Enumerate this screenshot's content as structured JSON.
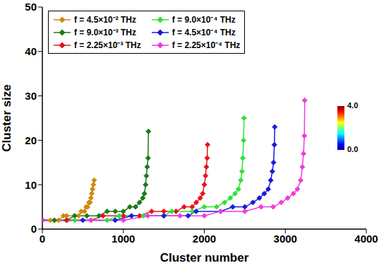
{
  "chart_data": {
    "type": "line",
    "x_label": "Cluster number",
    "y_label": "Cluster size",
    "xlim": [
      0,
      4000
    ],
    "xticks": [
      0,
      1000,
      2000,
      3000,
      4000
    ],
    "ylim": [
      0,
      50
    ],
    "yticks": [
      0,
      10,
      20,
      30,
      40,
      50
    ],
    "grid": false,
    "legend": "upper left",
    "marker": "diamond",
    "line_style": "solid",
    "colorbar": {
      "range": [
        0,
        4
      ],
      "ticks": [
        {
          "value": 4,
          "label": "4.0"
        },
        {
          "value": 0,
          "label": "0.0"
        }
      ]
    },
    "series": [
      {
        "name": "f = 4.5×10⁻² THz",
        "color": "#d08a10",
        "x": [
          1,
          100,
          200,
          260,
          300,
          400,
          450,
          480,
          520,
          540,
          560,
          575,
          590,
          600,
          610,
          620,
          630,
          640
        ],
        "values": [
          2,
          2,
          2,
          3,
          3,
          3,
          3,
          4,
          4,
          5,
          5,
          6,
          6,
          7,
          8,
          9,
          10,
          11
        ]
      },
      {
        "name": "f = 9.0×10⁻³ THz",
        "color": "#1c7a1c",
        "x": [
          1,
          150,
          300,
          400,
          550,
          700,
          800,
          900,
          1000,
          1080,
          1150,
          1200,
          1240,
          1260,
          1275,
          1285,
          1295,
          1305,
          1310
        ],
        "values": [
          2,
          2,
          2,
          3,
          3,
          3,
          4,
          4,
          4,
          5,
          5,
          6,
          7,
          8,
          10,
          12,
          14,
          16,
          22
        ]
      },
      {
        "name": "f = 2.25×10⁻³ THz",
        "color": "#e8141c",
        "x": [
          1,
          300,
          600,
          750,
          1000,
          1200,
          1350,
          1500,
          1650,
          1750,
          1850,
          1900,
          1950,
          1980,
          2000,
          2015,
          2025,
          2035,
          2040
        ],
        "values": [
          2,
          2,
          2,
          3,
          3,
          3,
          4,
          4,
          4,
          5,
          5,
          6,
          7,
          8,
          10,
          12,
          14,
          16,
          19
        ]
      },
      {
        "name": "f = 9.0×10⁻⁴ THz",
        "color": "#33e03a",
        "x": [
          1,
          400,
          800,
          950,
          1250,
          1500,
          1600,
          1850,
          2000,
          2150,
          2250,
          2320,
          2380,
          2420,
          2450,
          2465,
          2475,
          2485,
          2490
        ],
        "values": [
          2,
          2,
          2,
          3,
          3,
          3,
          4,
          4,
          5,
          5,
          6,
          7,
          8,
          9,
          11,
          13,
          16,
          20,
          25
        ]
      },
      {
        "name": "f = 4.5×10⁻⁴ THz",
        "color": "#1a1adc",
        "x": [
          1,
          500,
          900,
          1100,
          1500,
          1800,
          1900,
          2200,
          2350,
          2500,
          2600,
          2680,
          2740,
          2790,
          2820,
          2840,
          2855,
          2865,
          2870
        ],
        "values": [
          2,
          2,
          2,
          3,
          3,
          3,
          4,
          4,
          5,
          5,
          6,
          7,
          8,
          9,
          11,
          13,
          15,
          19,
          23
        ]
      },
      {
        "name": "f = 2.25×10⁻⁴ THz",
        "color": "#f03cdc",
        "x": [
          1,
          600,
          1000,
          1300,
          1700,
          2000,
          2200,
          2500,
          2700,
          2850,
          2950,
          3030,
          3100,
          3150,
          3190,
          3210,
          3225,
          3235,
          3240
        ],
        "values": [
          2,
          2,
          2,
          3,
          3,
          3,
          4,
          4,
          5,
          5,
          6,
          7,
          8,
          9,
          11,
          14,
          17,
          21,
          29
        ]
      }
    ]
  }
}
